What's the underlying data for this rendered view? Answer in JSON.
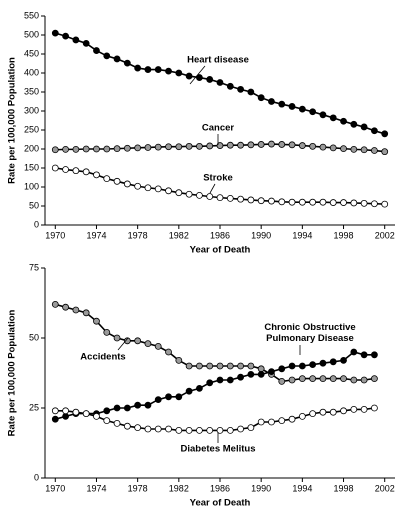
{
  "chart_data": [
    {
      "type": "line",
      "xlabel": "Year of Death",
      "ylabel": "Rate per 100,000 Population",
      "x": [
        1970,
        1971,
        1972,
        1973,
        1974,
        1975,
        1976,
        1977,
        1978,
        1979,
        1980,
        1981,
        1982,
        1983,
        1984,
        1985,
        1986,
        1987,
        1988,
        1989,
        1990,
        1991,
        1992,
        1993,
        1994,
        1995,
        1996,
        1997,
        1998,
        1999,
        2000,
        2001,
        2002
      ],
      "xlim": [
        1969,
        2003
      ],
      "xticks": [
        1970,
        1974,
        1978,
        1982,
        1986,
        1990,
        1994,
        1998,
        2002
      ],
      "ylim": [
        0,
        550
      ],
      "yticks": [
        0,
        50,
        100,
        150,
        200,
        250,
        300,
        350,
        400,
        450,
        500,
        550
      ],
      "series": [
        {
          "name": "Heart disease",
          "color": "#000000",
          "values": [
            505,
            497,
            487,
            478,
            459,
            445,
            437,
            426,
            413,
            409,
            409,
            405,
            400,
            392,
            388,
            383,
            375,
            365,
            357,
            350,
            335,
            325,
            318,
            312,
            305,
            298,
            290,
            282,
            273,
            265,
            258,
            248,
            240
          ]
        },
        {
          "name": "Cancer",
          "color": "#9a9a9a",
          "values": [
            198,
            199,
            199,
            200,
            200,
            200,
            201,
            202,
            203,
            204,
            205,
            206,
            206,
            207,
            207,
            208,
            209,
            210,
            210,
            211,
            212,
            213,
            212,
            211,
            209,
            207,
            205,
            203,
            201,
            199,
            198,
            196,
            193
          ]
        },
        {
          "name": "Stroke",
          "color": "#ffffff",
          "values": [
            150,
            146,
            143,
            140,
            132,
            122,
            115,
            108,
            102,
            98,
            95,
            90,
            85,
            81,
            78,
            75,
            72,
            70,
            68,
            66,
            64,
            63,
            61,
            60,
            60,
            60,
            60,
            59,
            59,
            58,
            57,
            56,
            55
          ]
        }
      ]
    },
    {
      "type": "line",
      "xlabel": "Year of Death",
      "ylabel": "Rate per 100,000 Population",
      "x": [
        1970,
        1971,
        1972,
        1973,
        1974,
        1975,
        1976,
        1977,
        1978,
        1979,
        1980,
        1981,
        1982,
        1983,
        1984,
        1985,
        1986,
        1987,
        1988,
        1989,
        1990,
        1991,
        1992,
        1993,
        1994,
        1995,
        1996,
        1997,
        1998,
        1999,
        2000,
        2001
      ],
      "xlim": [
        1969,
        2003
      ],
      "xticks": [
        1970,
        1974,
        1978,
        1982,
        1986,
        1990,
        1994,
        1998,
        2002
      ],
      "ylim": [
        0,
        75
      ],
      "yticks": [
        0,
        25,
        50,
        75
      ],
      "series": [
        {
          "name": "Accidents",
          "color": "#9a9a9a",
          "values": [
            62,
            61,
            60,
            59,
            56,
            52,
            50,
            49,
            49,
            48,
            47,
            45,
            42,
            40,
            40,
            40,
            40,
            40,
            40,
            40,
            39,
            37,
            34.5,
            35,
            35.5,
            35.5,
            35.5,
            35.5,
            35.5,
            35,
            35,
            35.5
          ]
        },
        {
          "name": "Chronic Obstructive Pulmonary Disease",
          "color": "#000000",
          "values": [
            21,
            22,
            23,
            23,
            23,
            24,
            25,
            25,
            26,
            26,
            28,
            29,
            29,
            31,
            32,
            34,
            35,
            35,
            36,
            37,
            37,
            38,
            39,
            40,
            40,
            40.5,
            41,
            41.5,
            42,
            45,
            44,
            44
          ]
        },
        {
          "name": "Diabetes Melitus",
          "color": "#ffffff",
          "values": [
            24,
            24,
            23.5,
            23,
            22,
            20.5,
            19.5,
            18.5,
            18,
            17.5,
            17.5,
            17.5,
            17,
            17,
            17,
            17,
            17,
            17,
            17.5,
            18,
            20,
            20,
            20.5,
            21,
            22,
            23,
            23.5,
            23.5,
            24,
            24.5,
            24.5,
            25
          ]
        }
      ]
    }
  ]
}
